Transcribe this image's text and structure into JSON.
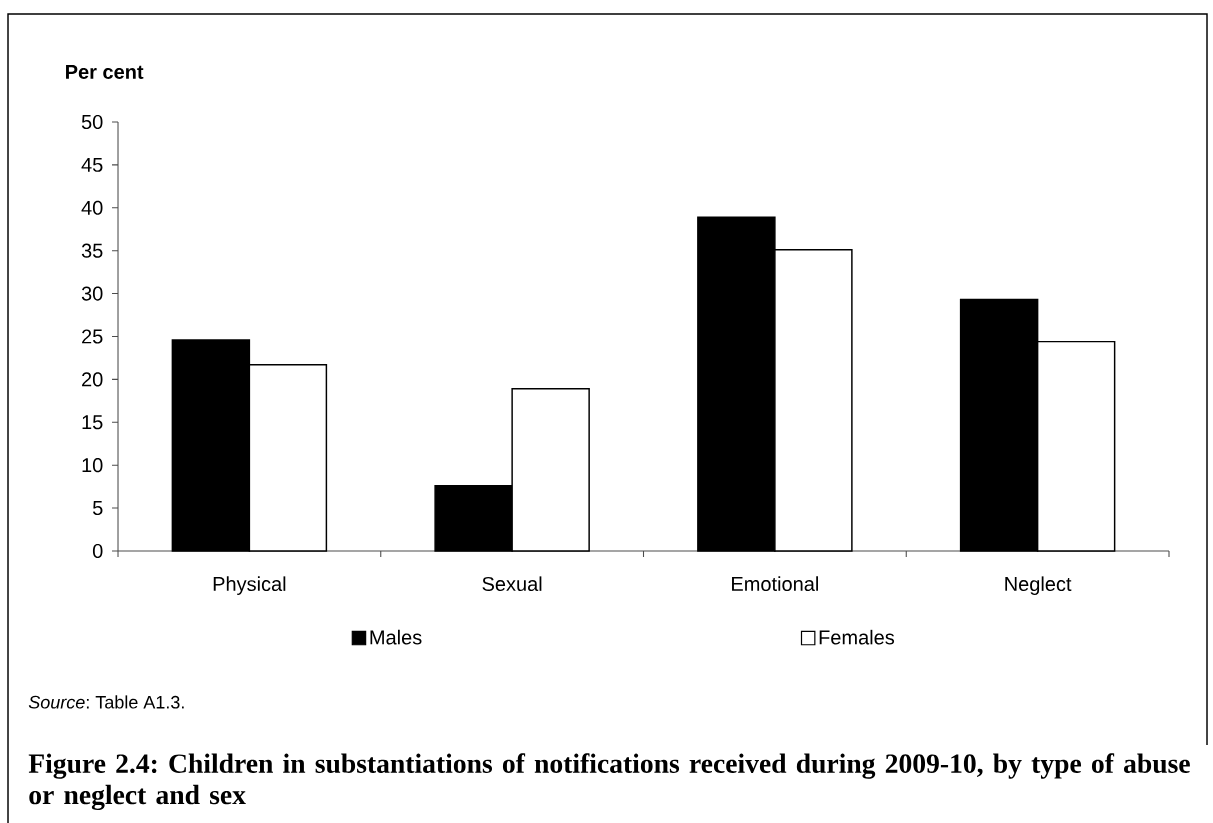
{
  "chart_data": {
    "type": "bar",
    "title": "Figure 2.4: Children in substantiations of notifications received during 2009-10, by type of abuse or neglect and sex",
    "ylabel": "Per cent",
    "annotations": [
      "*Source*: Table A1.3."
    ],
    "categories": [
      "Physical",
      "Sexual",
      "Emotional",
      "Neglect"
    ],
    "series": [
      {
        "name": "Males",
        "color": "#000000",
        "values": [
          24.6,
          7.6,
          38.9,
          29.3
        ]
      },
      {
        "name": "Females",
        "color": "#ffffff",
        "values": [
          21.7,
          18.9,
          35.1,
          24.4
        ]
      }
    ],
    "ylim": [
      0,
      50
    ],
    "yticks": [
      0,
      5,
      10,
      15,
      20,
      25,
      30,
      35,
      40,
      45,
      50
    ],
    "legend": "bottom"
  }
}
